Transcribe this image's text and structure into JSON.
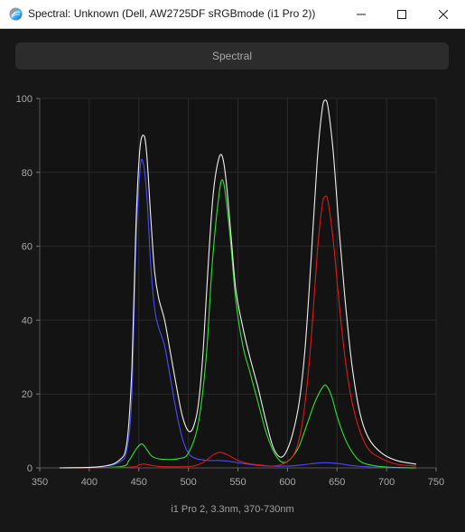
{
  "window": {
    "title": "Spectral: Unknown (Dell, AW2725DF sRGBmode (i1 Pro 2))",
    "app_icon": "spectral-app-icon",
    "controls": [
      "minimize-icon",
      "maximize-icon",
      "close-icon"
    ]
  },
  "toolbar": {
    "tab_label": "Spectral"
  },
  "caption": "i1 Pro 2, 3.3nm, 370-730nm",
  "chart_data": {
    "type": "line",
    "title": "",
    "xlabel": "",
    "ylabel": "",
    "xlim": [
      350,
      750
    ],
    "ylim": [
      0,
      100
    ],
    "x_ticks": [
      350,
      400,
      450,
      500,
      550,
      600,
      650,
      700,
      750
    ],
    "y_ticks": [
      0,
      20,
      40,
      60,
      80,
      100
    ],
    "grid": true,
    "series": [
      {
        "color": "#4a4aff",
        "points": [
          [
            370,
            0
          ],
          [
            410,
            0.3
          ],
          [
            430,
            1.5
          ],
          [
            438,
            5
          ],
          [
            443,
            20
          ],
          [
            447,
            60
          ],
          [
            451,
            80
          ],
          [
            454,
            83
          ],
          [
            458,
            74
          ],
          [
            462,
            55
          ],
          [
            466,
            43
          ],
          [
            470,
            38
          ],
          [
            476,
            33
          ],
          [
            482,
            24
          ],
          [
            488,
            15
          ],
          [
            494,
            8
          ],
          [
            500,
            4
          ],
          [
            508,
            2.5
          ],
          [
            520,
            2
          ],
          [
            530,
            2
          ],
          [
            540,
            1.8
          ],
          [
            560,
            1
          ],
          [
            580,
            0.5
          ],
          [
            600,
            0.5
          ],
          [
            615,
            0.8
          ],
          [
            630,
            1.3
          ],
          [
            640,
            1.4
          ],
          [
            650,
            1.2
          ],
          [
            670,
            0.5
          ],
          [
            700,
            0.1
          ],
          [
            730,
            0
          ]
        ]
      },
      {
        "color": "#2fe02f",
        "points": [
          [
            370,
            0
          ],
          [
            430,
            0.3
          ],
          [
            440,
            2
          ],
          [
            447,
            5
          ],
          [
            453,
            6.5
          ],
          [
            458,
            5
          ],
          [
            464,
            3
          ],
          [
            475,
            2.3
          ],
          [
            490,
            2.5
          ],
          [
            500,
            4
          ],
          [
            510,
            12
          ],
          [
            518,
            30
          ],
          [
            524,
            55
          ],
          [
            530,
            72
          ],
          [
            534,
            78
          ],
          [
            538,
            73
          ],
          [
            543,
            60
          ],
          [
            548,
            45
          ],
          [
            555,
            33
          ],
          [
            562,
            26
          ],
          [
            570,
            18
          ],
          [
            578,
            10
          ],
          [
            585,
            5
          ],
          [
            592,
            2
          ],
          [
            598,
            1.5
          ],
          [
            605,
            3
          ],
          [
            612,
            6
          ],
          [
            620,
            12
          ],
          [
            628,
            18
          ],
          [
            636,
            22
          ],
          [
            640,
            22
          ],
          [
            645,
            19
          ],
          [
            650,
            14
          ],
          [
            658,
            8
          ],
          [
            666,
            4
          ],
          [
            675,
            1.5
          ],
          [
            690,
            0.5
          ],
          [
            710,
            0.1
          ],
          [
            730,
            0
          ]
        ]
      },
      {
        "color": "#e01818",
        "points": [
          [
            370,
            0
          ],
          [
            440,
            0.2
          ],
          [
            450,
            0.8
          ],
          [
            456,
            1
          ],
          [
            470,
            0.4
          ],
          [
            490,
            0.3
          ],
          [
            505,
            0.5
          ],
          [
            515,
            1.5
          ],
          [
            525,
            3.5
          ],
          [
            532,
            4.2
          ],
          [
            540,
            3.5
          ],
          [
            550,
            2
          ],
          [
            560,
            1.2
          ],
          [
            575,
            0.7
          ],
          [
            585,
            0.5
          ],
          [
            595,
            1
          ],
          [
            605,
            3
          ],
          [
            612,
            8
          ],
          [
            618,
            18
          ],
          [
            624,
            35
          ],
          [
            630,
            58
          ],
          [
            635,
            71
          ],
          [
            638,
            73.5
          ],
          [
            641,
            72
          ],
          [
            646,
            62
          ],
          [
            652,
            45
          ],
          [
            658,
            30
          ],
          [
            665,
            18
          ],
          [
            673,
            10
          ],
          [
            682,
            5
          ],
          [
            695,
            2.5
          ],
          [
            710,
            1
          ],
          [
            730,
            0.5
          ]
        ]
      },
      {
        "color": "#f0f0f0",
        "points": [
          [
            370,
            0
          ],
          [
            410,
            0.3
          ],
          [
            430,
            2
          ],
          [
            438,
            7
          ],
          [
            443,
            27
          ],
          [
            447,
            65
          ],
          [
            451,
            86
          ],
          [
            455,
            90
          ],
          [
            458,
            85
          ],
          [
            462,
            68
          ],
          [
            466,
            53
          ],
          [
            470,
            46
          ],
          [
            476,
            40
          ],
          [
            482,
            31
          ],
          [
            488,
            22
          ],
          [
            494,
            14
          ],
          [
            500,
            10
          ],
          [
            505,
            11
          ],
          [
            510,
            17
          ],
          [
            515,
            32
          ],
          [
            520,
            55
          ],
          [
            525,
            74
          ],
          [
            530,
            83
          ],
          [
            534,
            84.5
          ],
          [
            538,
            78
          ],
          [
            543,
            63
          ],
          [
            548,
            48
          ],
          [
            555,
            38
          ],
          [
            562,
            30
          ],
          [
            570,
            22
          ],
          [
            578,
            13
          ],
          [
            585,
            6
          ],
          [
            592,
            3
          ],
          [
            598,
            4
          ],
          [
            605,
            9
          ],
          [
            612,
            18
          ],
          [
            618,
            33
          ],
          [
            624,
            57
          ],
          [
            630,
            83
          ],
          [
            635,
            97
          ],
          [
            638,
            99.5
          ],
          [
            641,
            97.5
          ],
          [
            646,
            86
          ],
          [
            652,
            65
          ],
          [
            658,
            46
          ],
          [
            665,
            28
          ],
          [
            673,
            15
          ],
          [
            682,
            8
          ],
          [
            695,
            4
          ],
          [
            710,
            2
          ],
          [
            730,
            1
          ]
        ]
      }
    ]
  }
}
